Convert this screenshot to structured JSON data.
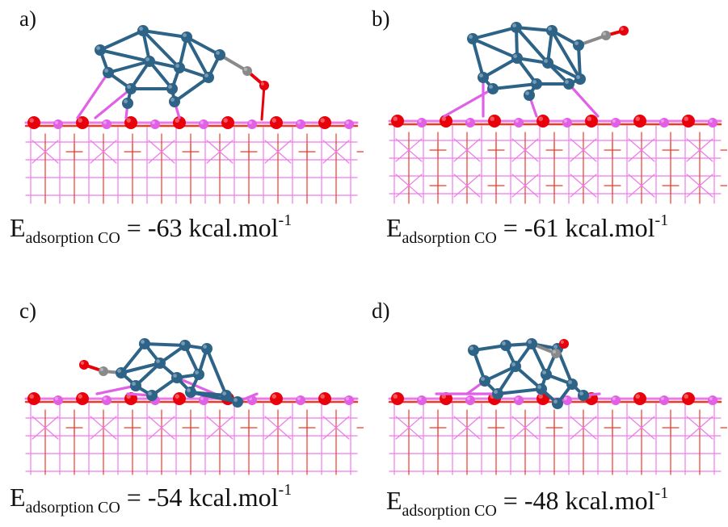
{
  "colors": {
    "oxygen": "#e8000b",
    "cation": "#e060e6",
    "cluster": "#2e6388",
    "carbon": "#8a8a8a",
    "lattice_o": "#ef3a2a",
    "lattice_c": "#ee7aea"
  },
  "panels": [
    {
      "label": "a)",
      "energy": {
        "symbol": "E",
        "subscript": "adsorption CO",
        "equals": " = ",
        "value": "-63",
        "unit": " kcal.mol",
        "exponent": "-1"
      },
      "co_mode": "bridge-down"
    },
    {
      "label": "b)",
      "energy": {
        "symbol": "E",
        "subscript": "adsorption CO",
        "equals": " = ",
        "value": "-61",
        "unit": " kcal.mol",
        "exponent": "-1"
      },
      "co_mode": "right-side"
    },
    {
      "label": "c)",
      "energy": {
        "symbol": "E",
        "subscript": "adsorption CO",
        "equals": " = ",
        "value": "-54",
        "unit": " kcal.mol",
        "exponent": "-1"
      },
      "co_mode": "left-side"
    },
    {
      "label": "d)",
      "energy": {
        "symbol": "E",
        "subscript": "adsorption CO",
        "equals": " = ",
        "value": "-48",
        "unit": " kcal.mol",
        "exponent": "-1"
      },
      "co_mode": "top"
    }
  ]
}
